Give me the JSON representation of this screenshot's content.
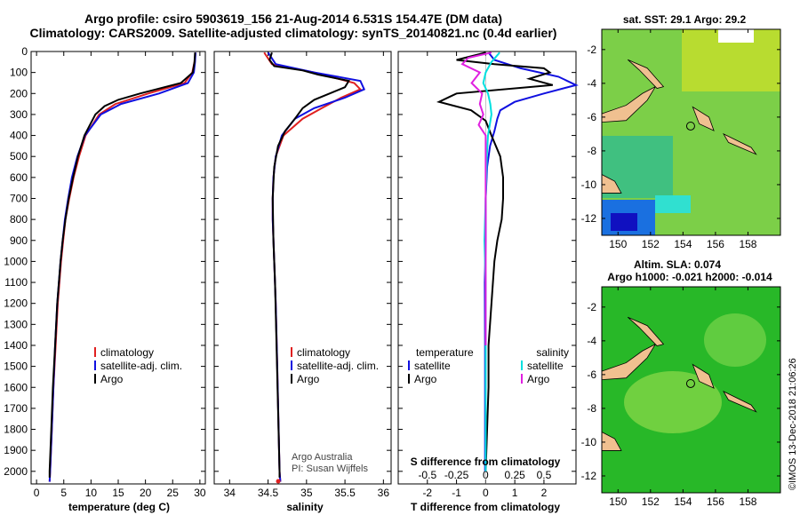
{
  "titles": {
    "line1": "Argo profile: csiro 5903619_156 21-Aug-2014 6.531S 154.47E (DM data)",
    "line2": "Climatology: CARS2009. Satellite-adjusted climatology: synTS_20140821.nc (0.4d earlier)"
  },
  "colors": {
    "red": "#e02020",
    "blue": "#1010e0",
    "black": "#000000",
    "cyan": "#00e0e0",
    "magenta": "#e020e0",
    "land": "#f0c090"
  },
  "depth_ticks": [
    0,
    100,
    200,
    300,
    400,
    500,
    600,
    700,
    800,
    900,
    1000,
    1100,
    1200,
    1300,
    1400,
    1500,
    1600,
    1700,
    1800,
    1900,
    2000
  ],
  "chart_data": [
    {
      "type": "line",
      "id": "temperature",
      "xlabel": "temperature (deg C)",
      "ylabel": "",
      "xlim": [
        -1,
        31
      ],
      "ylim": [
        2060,
        0
      ],
      "xticks": [
        0,
        5,
        10,
        15,
        20,
        25,
        30
      ],
      "xticklabels": [
        "0",
        "5",
        "10",
        "15",
        "20",
        "25",
        "30"
      ],
      "legend": [
        "climatology",
        "satellite-adj. clim.",
        "Argo"
      ],
      "series": [
        {
          "name": "climatology",
          "color": "#e02020",
          "depth": [
            5,
            50,
            100,
            150,
            200,
            250,
            300,
            400,
            500,
            600,
            700,
            800,
            900,
            1000,
            1200,
            1400,
            1600,
            1800,
            2000,
            2050
          ],
          "values": [
            29.2,
            29.0,
            28.6,
            27.2,
            20.5,
            14.5,
            11.5,
            9.0,
            7.8,
            6.8,
            6.0,
            5.3,
            4.9,
            4.5,
            3.9,
            3.5,
            3.1,
            2.8,
            2.5,
            2.4
          ]
        },
        {
          "name": "satellite-adj. clim.",
          "color": "#1010e0",
          "depth": [
            5,
            50,
            100,
            150,
            200,
            250,
            300,
            400,
            500,
            600,
            700,
            800,
            900,
            1000,
            1200,
            1400,
            1600,
            1800,
            2000,
            2050
          ],
          "values": [
            29.2,
            29.1,
            28.9,
            27.8,
            22.5,
            15.5,
            11.8,
            8.9,
            7.5,
            6.5,
            5.8,
            5.2,
            4.8,
            4.4,
            3.8,
            3.4,
            3.1,
            2.8,
            2.5,
            2.4
          ]
        },
        {
          "name": "Argo",
          "color": "#000000",
          "depth": [
            5,
            50,
            100,
            150,
            200,
            230,
            260,
            300,
            400,
            500,
            600,
            700,
            800,
            900,
            1000,
            1200,
            1400,
            1600,
            1800,
            2000,
            2030
          ],
          "values": [
            29.1,
            29.0,
            28.7,
            26.5,
            19.0,
            15.0,
            12.5,
            10.8,
            8.8,
            7.6,
            6.7,
            5.9,
            5.3,
            4.8,
            4.4,
            3.8,
            3.4,
            3.0,
            2.7,
            2.4,
            2.4
          ]
        }
      ]
    },
    {
      "type": "line",
      "id": "salinity",
      "xlabel": "salinity",
      "ylabel": "",
      "xlim": [
        33.8,
        36.1
      ],
      "ylim": [
        2060,
        0
      ],
      "xticks": [
        34,
        34.5,
        35,
        35.5,
        36
      ],
      "xticklabels": [
        "34",
        "34.5",
        "35",
        "35.5",
        "36"
      ],
      "legend": [
        "climatology",
        "satellite-adj. clim.",
        "Argo"
      ],
      "series": [
        {
          "name": "climatology",
          "color": "#e02020",
          "depth": [
            5,
            60,
            100,
            150,
            180,
            220,
            270,
            320,
            400,
            500,
            600,
            700,
            800,
            1000,
            1200,
            1500,
            2000,
            2050
          ],
          "values": [
            34.45,
            34.55,
            35.1,
            35.62,
            35.7,
            35.45,
            35.2,
            34.95,
            34.7,
            34.6,
            34.57,
            34.56,
            34.56,
            34.58,
            34.6,
            34.62,
            34.65,
            34.66
          ]
        },
        {
          "name": "satellite-adj. clim.",
          "color": "#1010e0",
          "depth": [
            5,
            60,
            100,
            140,
            180,
            220,
            270,
            320,
            400,
            500,
            600,
            700,
            800,
            1000,
            1200,
            1500,
            2000,
            2050
          ],
          "values": [
            34.5,
            34.6,
            35.1,
            35.7,
            35.75,
            35.5,
            35.1,
            34.85,
            34.68,
            34.6,
            34.57,
            34.56,
            34.56,
            34.58,
            34.6,
            34.62,
            34.65,
            34.66
          ]
        },
        {
          "name": "Argo",
          "color": "#000000",
          "depth": [
            5,
            40,
            70,
            90,
            110,
            140,
            170,
            200,
            230,
            270,
            320,
            380,
            450,
            550,
            700,
            900,
            1100,
            1400,
            1700,
            2000,
            2030
          ],
          "values": [
            34.55,
            34.52,
            34.58,
            34.95,
            35.15,
            35.55,
            35.5,
            35.3,
            35.1,
            34.95,
            34.85,
            34.72,
            34.63,
            34.58,
            34.56,
            34.57,
            34.59,
            34.61,
            34.63,
            34.65,
            34.65
          ]
        }
      ],
      "annotations": [
        "Argo Australia",
        "PI: Susan Wijffels"
      ]
    },
    {
      "type": "line",
      "id": "difference",
      "xlabel": "T difference from climatology",
      "x2label": "S difference from climatology",
      "ylabel": "",
      "xlim": [
        -3,
        3.1
      ],
      "x2lim": [
        -0.75,
        0.775
      ],
      "ylim": [
        2060,
        0
      ],
      "xticks": [
        -2,
        -1,
        0,
        1,
        2
      ],
      "xticklabels": [
        "-2",
        "-1",
        "0",
        "1",
        "2"
      ],
      "x2ticks": [
        -0.5,
        -0.25,
        0,
        0.25,
        0.5
      ],
      "x2ticklabels": [
        "-0.5",
        "-0.25",
        "0",
        "0.25",
        "0.5"
      ],
      "legend_left_title": "temperature",
      "legend_right_title": "salinity",
      "legend": [
        "satellite",
        "Argo",
        "satellite",
        "Argo"
      ],
      "series": [
        {
          "name": "satellite",
          "axis": "T",
          "color": "#1010e0",
          "depth": [
            5,
            40,
            80,
            120,
            160,
            200,
            240,
            280,
            320,
            380,
            450,
            550,
            700,
            900,
            1100,
            1400,
            1700,
            2000
          ],
          "values": [
            0.1,
            0.3,
            1.2,
            2.5,
            3.1,
            2.0,
            1.0,
            0.5,
            0.4,
            0.3,
            0.15,
            0.05,
            0.0,
            0.0,
            -0.03,
            -0.02,
            -0.02,
            -0.02
          ]
        },
        {
          "name": "Argo",
          "axis": "T",
          "color": "#000000",
          "depth": [
            5,
            40,
            60,
            80,
            100,
            130,
            160,
            200,
            240,
            280,
            330,
            400,
            500,
            600,
            700,
            800,
            900,
            1000,
            1200,
            1400,
            1600,
            1800,
            2000
          ],
          "values": [
            0.0,
            -1.0,
            0.3,
            2.0,
            2.2,
            1.5,
            2.3,
            -1.0,
            -1.6,
            -0.5,
            0.0,
            0.2,
            0.5,
            0.6,
            0.6,
            0.55,
            0.4,
            0.3,
            0.2,
            0.1,
            0.1,
            0.05,
            0.0
          ]
        },
        {
          "name": "satellite",
          "axis": "S",
          "color": "#00e0e0",
          "depth": [
            5,
            50,
            100,
            150,
            200,
            250,
            300,
            400,
            500,
            700,
            900,
            1100,
            1400,
            1700,
            2000
          ],
          "values": [
            0.12,
            0.05,
            0.0,
            -0.02,
            0.02,
            0.04,
            0.05,
            0.02,
            0.01,
            0.0,
            -0.01,
            0.0,
            0.0,
            0.0,
            0.0
          ]
        },
        {
          "name": "Argo",
          "axis": "S",
          "color": "#e020e0",
          "depth": [
            5,
            30,
            60,
            100,
            150,
            200,
            250,
            300,
            350,
            400,
            500,
            600,
            800,
            1000,
            1200,
            1400
          ],
          "values": [
            0.05,
            -0.15,
            -0.2,
            -0.05,
            -0.12,
            -0.03,
            -0.05,
            -0.02,
            -0.06,
            0.0,
            0.0,
            0.0,
            0.0,
            0.0,
            0.0,
            0.0
          ]
        }
      ]
    }
  ],
  "maps": {
    "sst_title": "sat. SST: 29.1 Argo: 29.2",
    "sla_title1": "Altim. SLA: 0.074",
    "sla_title2": "Argo h1000: -0.021 h2000: -0.014",
    "lat_labels": [
      "-2",
      "-4",
      "-6",
      "-8",
      "-10",
      "-12"
    ],
    "lon_labels": [
      "150",
      "152",
      "154",
      "156",
      "158"
    ],
    "lat_range": [
      -13,
      -0.8
    ],
    "lon_range": [
      149,
      160
    ]
  },
  "footer": "©IMOS 13-Dec-2018 21:06:26"
}
